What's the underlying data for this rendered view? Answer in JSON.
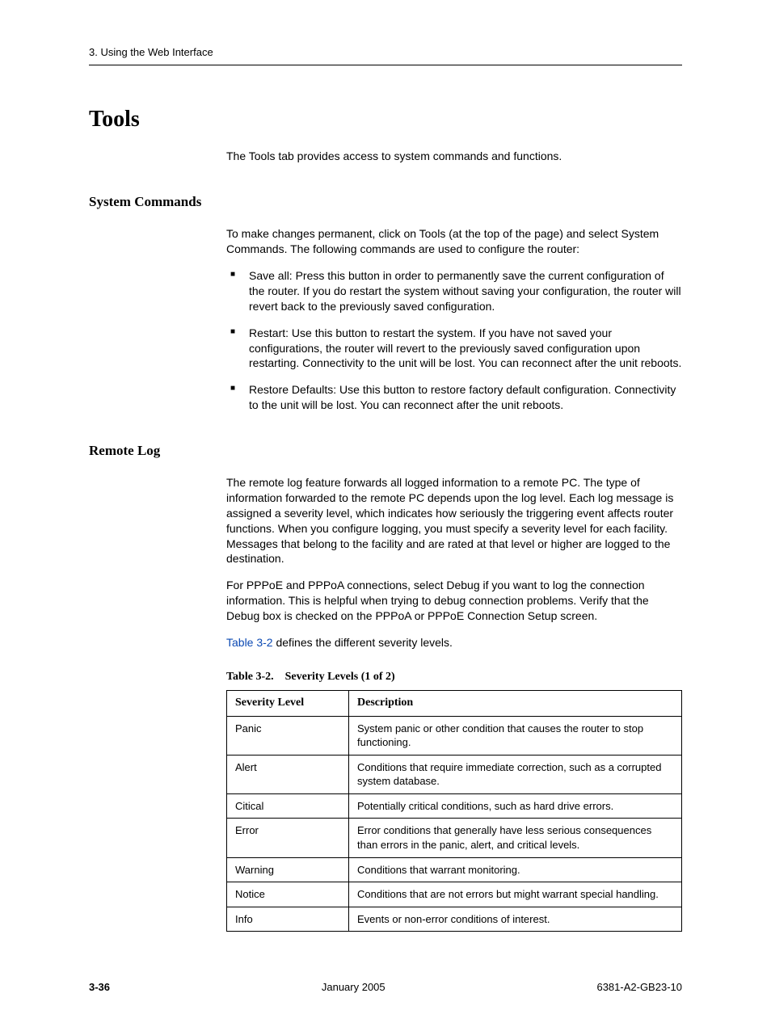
{
  "header": {
    "running": "3. Using the Web Interface"
  },
  "title": "Tools",
  "intro": "The Tools tab provides access to system commands and functions.",
  "sections": {
    "syscmd": {
      "heading": "System Commands",
      "lead": "To make changes permanent, click on Tools (at the top of the page) and select System Commands. The following commands are used to configure the router:",
      "items": [
        "Save all: Press this button in order to permanently save the current configuration of the router. If you do restart the system without saving your configuration, the router will revert back to the previously saved configuration.",
        "Restart: Use this button to restart the system. If you have not saved your configurations, the router will revert to the previously saved configuration upon restarting. Connectivity to the unit will be lost. You can reconnect after the unit reboots.",
        "Restore Defaults: Use this button to restore factory default configuration. Connectivity to the unit will be lost. You can reconnect after the unit reboots."
      ]
    },
    "remotelog": {
      "heading": "Remote Log",
      "p1": "The remote log feature forwards all logged information to a remote PC. The type of information forwarded to the remote PC depends upon the log level. Each log message is assigned a severity level, which indicates how seriously the triggering event affects router functions. When you configure logging, you must specify a severity level for each facility. Messages that belong to the facility and are rated at that level or higher are logged to the destination.",
      "p2": "For PPPoE and PPPoA connections, select Debug if you want to log the connection information. This is helpful when trying to debug connection problems. Verify that the Debug box is checked on the PPPoA or PPPoE Connection Setup screen.",
      "p3_link": "Table 3-2",
      "p3_tail": " defines the different severity levels."
    }
  },
  "table": {
    "caption_num": "Table 3-2.",
    "caption_title": "Severity Levels (1 of 2)",
    "columns": [
      "Severity Level",
      "Description"
    ],
    "rows": [
      [
        "Panic",
        "System panic or other condition that causes the router to stop functioning."
      ],
      [
        "Alert",
        "Conditions that require immediate correction, such as a corrupted system database."
      ],
      [
        "Citical",
        "Potentially critical conditions, such as hard drive errors."
      ],
      [
        "Error",
        "Error conditions that generally have less serious consequences than errors in the panic, alert, and critical levels."
      ],
      [
        "Warning",
        "Conditions that warrant monitoring."
      ],
      [
        "Notice",
        "Conditions that are not errors but might warrant special handling."
      ],
      [
        "Info",
        "Events or non-error conditions of interest."
      ]
    ]
  },
  "footer": {
    "page": "3-36",
    "date": "January 2005",
    "docnum": "6381-A2-GB23-10"
  }
}
